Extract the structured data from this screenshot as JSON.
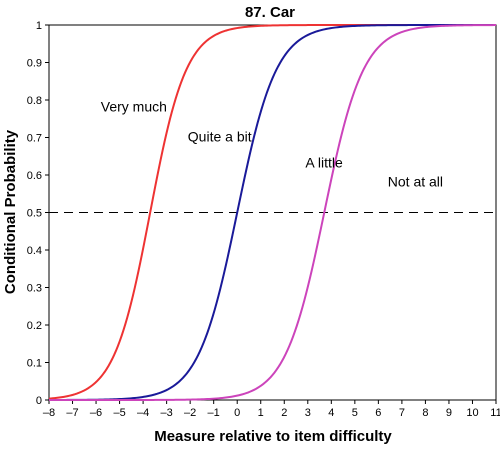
{
  "chart_data": {
    "type": "line",
    "title": "87. Car",
    "xlabel": "Measure relative to item difficulty",
    "ylabel": "Conditional Probability",
    "xlim": [
      -8,
      11
    ],
    "ylim": [
      0,
      1
    ],
    "x_ticks": [
      -8,
      -7,
      -6,
      -5,
      -4,
      -3,
      -2,
      -1,
      0,
      1,
      2,
      3,
      4,
      5,
      6,
      7,
      8,
      9,
      10,
      11
    ],
    "y_ticks": [
      0,
      0.1,
      0.2,
      0.3,
      0.4,
      0.5,
      0.6,
      0.7,
      0.8,
      0.9,
      1
    ],
    "reference_line_y": 0.5,
    "series": [
      {
        "name": "Very much",
        "color": "#ee3333",
        "midpoint": -3.7,
        "slope": 1.3,
        "label_at": [
          -5.8,
          0.77
        ]
      },
      {
        "name": "Quite a bit",
        "color": "#1a1a99",
        "midpoint": 0.0,
        "slope": 1.2,
        "label_at": [
          -2.1,
          0.69
        ]
      },
      {
        "name": "A little",
        "color": "#cc44bb",
        "midpoint": 3.7,
        "slope": 1.2,
        "label_at": [
          2.9,
          0.62
        ]
      },
      {
        "name": "Not at all",
        "color": "#cc44bb",
        "midpoint": 3.7,
        "slope": 1.2,
        "label_at": [
          6.4,
          0.57
        ]
      }
    ]
  }
}
